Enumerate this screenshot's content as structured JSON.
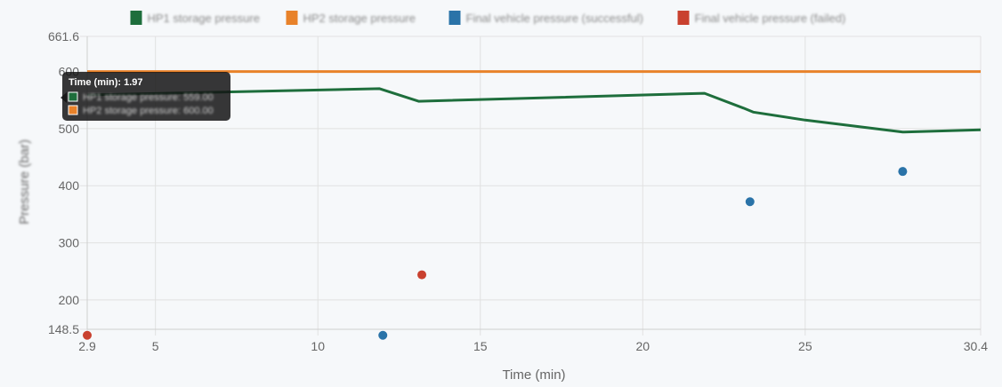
{
  "chart_data": {
    "type": "line",
    "xlabel": "Time (min)",
    "ylabel": "Pressure (bar)",
    "xlim": [
      2.9,
      30.4
    ],
    "ylim": [
      148.5,
      661.6
    ],
    "xticks": [
      "2.9",
      "5",
      "10",
      "15",
      "20",
      "25",
      "30.4"
    ],
    "yticks": [
      "148.5",
      "200",
      "300",
      "400",
      "500",
      "600",
      "661.6"
    ],
    "grid": true,
    "legend_position": "top",
    "series": [
      {
        "name": "HP1 storage pressure",
        "kind": "line",
        "color": "#1e6e3c",
        "points": [
          [
            2.9,
            559
          ],
          [
            11.9,
            570
          ],
          [
            13.1,
            548
          ],
          [
            21.9,
            562
          ],
          [
            23.1,
            536
          ],
          [
            23.4,
            529
          ],
          [
            25,
            515
          ],
          [
            28,
            494
          ],
          [
            30.4,
            498
          ]
        ]
      },
      {
        "name": "HP2 storage pressure",
        "kind": "line",
        "color": "#e8822a",
        "points": [
          [
            2.9,
            600
          ],
          [
            30.4,
            600
          ]
        ]
      },
      {
        "name": "Final vehicle pressure (successful)",
        "kind": "scatter",
        "color": "#2a73a8",
        "points": [
          [
            12,
            138
          ],
          [
            23.3,
            372
          ],
          [
            28,
            425
          ]
        ]
      },
      {
        "name": "Final vehicle pressure (failed)",
        "kind": "scatter",
        "color": "#c9412f",
        "points": [
          [
            2.9,
            138
          ],
          [
            13.2,
            244
          ]
        ]
      }
    ],
    "tooltip": {
      "title": "Time (min): 1.97",
      "rows": [
        {
          "label": "HP1 storage pressure: 559.00",
          "color": "#1e6e3c"
        },
        {
          "label": "HP2 storage pressure: 600.00",
          "color": "#e8822a"
        }
      ]
    }
  }
}
